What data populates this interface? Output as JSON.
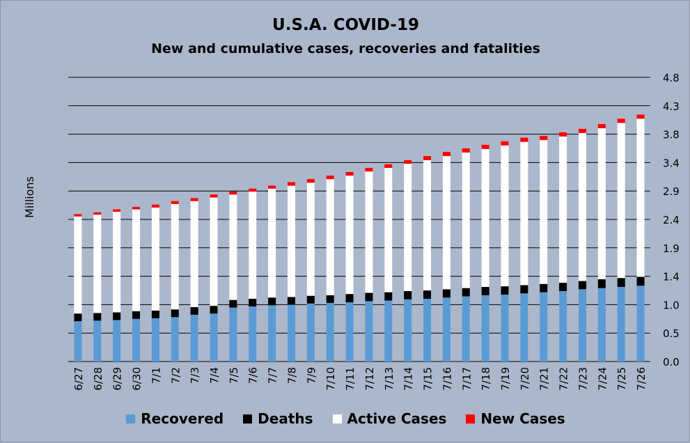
{
  "chart_data": {
    "type": "bar",
    "stacked": true,
    "title": "U.S.A. COVID-19",
    "subtitle": "New and cumulative cases, recoveries and fatalities",
    "ylabel": "Millions",
    "y_ticks": [
      "0.0",
      "0.5",
      "1.0",
      "1.4",
      "1.9",
      "2.4",
      "2.9",
      "3.4",
      "3.8",
      "4.3",
      "4.8"
    ],
    "y_tick_values": [
      0.0,
      0.48,
      0.96,
      1.44,
      1.92,
      2.4,
      2.88,
      3.36,
      3.84,
      4.32,
      4.8
    ],
    "ylim": [
      0,
      4.8
    ],
    "y_axis_position": "right",
    "grid": true,
    "legend_position": "bottom",
    "categories": [
      "6/27",
      "6/28",
      "6/29",
      "6/30",
      "7/1",
      "7/2",
      "7/3",
      "7/4",
      "7/5",
      "7/6",
      "7/7",
      "7/8",
      "7/9",
      "7/10",
      "7/11",
      "7/12",
      "7/13",
      "7/14",
      "7/15",
      "7/16",
      "7/17",
      "7/18",
      "7/19",
      "7/20",
      "7/21",
      "7/22",
      "7/23",
      "7/24",
      "7/25",
      "7/26"
    ],
    "series": [
      {
        "name": "Recovered",
        "color": "#5b9bd5",
        "values": [
          0.68,
          0.69,
          0.7,
          0.72,
          0.73,
          0.75,
          0.79,
          0.81,
          0.91,
          0.93,
          0.95,
          0.96,
          0.98,
          0.99,
          1.0,
          1.02,
          1.03,
          1.05,
          1.06,
          1.08,
          1.1,
          1.12,
          1.13,
          1.15,
          1.17,
          1.19,
          1.22,
          1.24,
          1.26,
          1.28
        ]
      },
      {
        "name": "Deaths",
        "color": "#000000",
        "values": [
          0.13,
          0.13,
          0.13,
          0.13,
          0.13,
          0.13,
          0.13,
          0.13,
          0.13,
          0.13,
          0.13,
          0.13,
          0.13,
          0.13,
          0.14,
          0.14,
          0.14,
          0.14,
          0.14,
          0.14,
          0.14,
          0.14,
          0.14,
          0.14,
          0.14,
          0.14,
          0.14,
          0.15,
          0.15,
          0.15
        ]
      },
      {
        "name": "Active Cases",
        "color": "#ffffff",
        "values": [
          1.64,
          1.66,
          1.7,
          1.72,
          1.74,
          1.78,
          1.79,
          1.83,
          1.78,
          1.81,
          1.84,
          1.88,
          1.91,
          1.96,
          2.0,
          2.05,
          2.1,
          2.15,
          2.2,
          2.25,
          2.29,
          2.33,
          2.38,
          2.42,
          2.43,
          2.47,
          2.5,
          2.55,
          2.62,
          2.67
        ]
      },
      {
        "name": "New Cases",
        "color": "#ff0000",
        "values": [
          0.04,
          0.04,
          0.04,
          0.04,
          0.05,
          0.05,
          0.05,
          0.05,
          0.05,
          0.05,
          0.05,
          0.06,
          0.06,
          0.06,
          0.06,
          0.06,
          0.06,
          0.06,
          0.07,
          0.07,
          0.07,
          0.07,
          0.07,
          0.07,
          0.07,
          0.07,
          0.07,
          0.07,
          0.07,
          0.07
        ]
      }
    ]
  }
}
